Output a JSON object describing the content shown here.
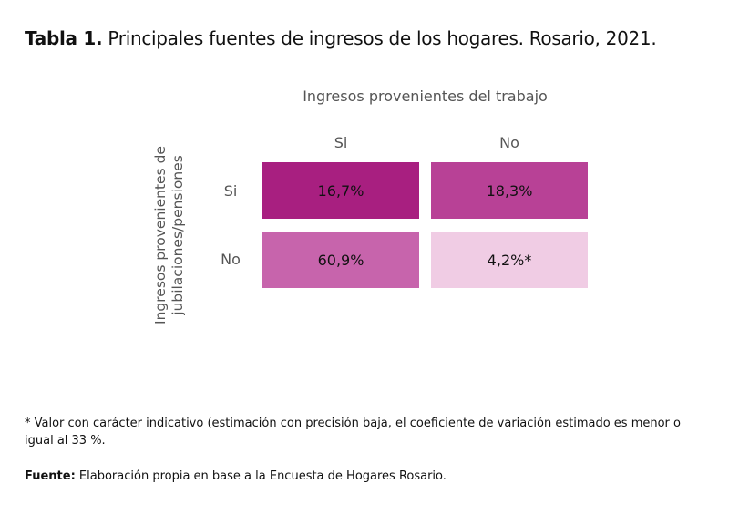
{
  "title": {
    "prefix": "Tabla 1.",
    "text": " Principales fuentes de ingresos de los hogares. Rosario, 2021."
  },
  "chart_data": {
    "type": "table",
    "column_title": "Ingresos provenientes del trabajo",
    "row_title_line1": "Ingresos provenientes de",
    "row_title_line2": "jubilaciones/pensiones",
    "columns": [
      "Si",
      "No"
    ],
    "rows": [
      "Si",
      "No"
    ],
    "values": [
      [
        16.7,
        18.3
      ],
      [
        60.9,
        4.2
      ]
    ],
    "labels": [
      [
        "16,7%",
        "18,3%"
      ],
      [
        "60,9%",
        "4,2%*"
      ]
    ],
    "colors": [
      [
        "#a81f80",
        "#b84196"
      ],
      [
        "#c764ac",
        "#f0cce4"
      ]
    ]
  },
  "note": "* Valor con carácter indicativo (estimación con precisión baja, el coeficiente de variación estimado es menor o igual al 33 %.",
  "source": {
    "label": "Fuente:",
    "text": " Elaboración propia en base a la Encuesta de Hogares Rosario."
  }
}
